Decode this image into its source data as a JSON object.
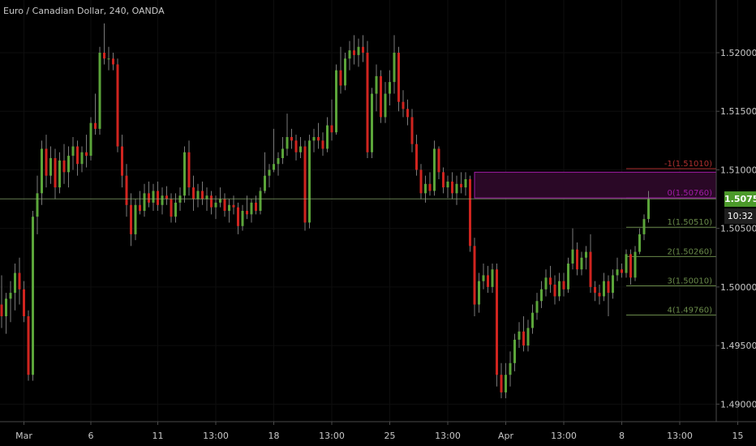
{
  "chart_title": "Euro / Canadian Dollar, 240, OANDA",
  "current_price_label": "1.50752",
  "countdown_label": "10:32",
  "colors": {
    "background": "#000000",
    "up_candle": "#5ba53a",
    "down_candle": "#d0241f",
    "wick": "#7a7a7a",
    "axis_text": "#c8c8c8",
    "price_line": "#8fb174",
    "fib_green": "#6a8a4a",
    "fib_red": "#b03030",
    "zone_fill": "#2a0826",
    "zone_border": "#a21ca8",
    "price_tag": "#4c9a2a"
  },
  "chart_data": {
    "type": "candlestick",
    "symbol": "EURCAD",
    "timeframe": "240",
    "source": "OANDA",
    "title": "Euro / Canadian Dollar, 240, OANDA",
    "ylim": [
      1.4885,
      1.5245
    ],
    "y_ticks": [
      1.49,
      1.495,
      1.5,
      1.505,
      1.51,
      1.515,
      1.52
    ],
    "y_tick_labels": [
      "1.49000",
      "1.49500",
      "1.50000",
      "1.50500",
      "1.51000",
      "1.51500",
      "1.52000"
    ],
    "x_ticks": [
      {
        "label": "Mar",
        "index": 5
      },
      {
        "label": "6",
        "index": 20
      },
      {
        "label": "11",
        "index": 35
      },
      {
        "label": "13:00",
        "index": 48
      },
      {
        "label": "18",
        "index": 61
      },
      {
        "label": "13:00",
        "index": 74
      },
      {
        "label": "25",
        "index": 87
      },
      {
        "label": "13:00",
        "index": 100
      },
      {
        "label": "Apr",
        "index": 113
      },
      {
        "label": "13:00",
        "index": 126
      },
      {
        "label": "8",
        "index": 139
      },
      {
        "label": "13:00",
        "index": 152
      },
      {
        "label": "15",
        "index": 165
      }
    ],
    "current_price": 1.50752,
    "current_price_label": "1.50752",
    "countdown": "10:32",
    "fib_levels": [
      {
        "label": "-1(1.51010)",
        "value": 1.5101,
        "color": "red"
      },
      {
        "label": "0(1.50760)",
        "value": 1.5076,
        "color": "magenta"
      },
      {
        "label": "1(1.50510)",
        "value": 1.5051,
        "color": "green"
      },
      {
        "label": "2(1.50260)",
        "value": 1.5026,
        "color": "green"
      },
      {
        "label": "3(1.50010)",
        "value": 1.5001,
        "color": "green"
      },
      {
        "label": "4(1.49760)",
        "value": 1.4976,
        "color": "green"
      }
    ],
    "zone": {
      "from_index": 106,
      "top": 1.5098,
      "bottom": 1.5076
    },
    "fib_from_index": 140,
    "candles": [
      [
        1.4985,
        1.501,
        1.4965,
        1.4975
      ],
      [
        1.4975,
        1.4995,
        1.496,
        1.499
      ],
      [
        1.499,
        1.5005,
        1.497,
        1.4995
      ],
      [
        1.4995,
        1.502,
        1.498,
        1.5012
      ],
      [
        1.5012,
        1.5025,
        1.4985,
        1.4998
      ],
      [
        1.4998,
        1.5005,
        1.497,
        1.4975
      ],
      [
        1.4975,
        1.498,
        1.492,
        1.4925
      ],
      [
        1.4925,
        1.5065,
        1.492,
        1.506
      ],
      [
        1.506,
        1.5095,
        1.5045,
        1.508
      ],
      [
        1.508,
        1.5125,
        1.507,
        1.5118
      ],
      [
        1.5118,
        1.513,
        1.5085,
        1.5095
      ],
      [
        1.5095,
        1.512,
        1.5088,
        1.511
      ],
      [
        1.511,
        1.5118,
        1.5075,
        1.5085
      ],
      [
        1.5085,
        1.5115,
        1.508,
        1.5108
      ],
      [
        1.5108,
        1.5122,
        1.5088,
        1.5098
      ],
      [
        1.5098,
        1.512,
        1.5085,
        1.5112
      ],
      [
        1.5112,
        1.5128,
        1.51,
        1.512
      ],
      [
        1.512,
        1.5125,
        1.5095,
        1.5105
      ],
      [
        1.5105,
        1.512,
        1.5098,
        1.5115
      ],
      [
        1.5115,
        1.513,
        1.5102,
        1.5112
      ],
      [
        1.5112,
        1.5145,
        1.5108,
        1.514
      ],
      [
        1.514,
        1.5165,
        1.513,
        1.5135
      ],
      [
        1.5135,
        1.5205,
        1.513,
        1.52
      ],
      [
        1.52,
        1.5225,
        1.519,
        1.5195
      ],
      [
        1.5195,
        1.5205,
        1.5185,
        1.5195
      ],
      [
        1.5195,
        1.52,
        1.5185,
        1.519
      ],
      [
        1.519,
        1.5195,
        1.5115,
        1.512
      ],
      [
        1.512,
        1.513,
        1.5085,
        1.5095
      ],
      [
        1.5095,
        1.5105,
        1.506,
        1.507
      ],
      [
        1.507,
        1.508,
        1.5035,
        1.5045
      ],
      [
        1.5045,
        1.5075,
        1.504,
        1.507
      ],
      [
        1.507,
        1.5082,
        1.5062,
        1.5065
      ],
      [
        1.5065,
        1.5088,
        1.506,
        1.508
      ],
      [
        1.508,
        1.509,
        1.5068,
        1.5072
      ],
      [
        1.5072,
        1.5088,
        1.5065,
        1.5082
      ],
      [
        1.5082,
        1.509,
        1.5065,
        1.507
      ],
      [
        1.507,
        1.5085,
        1.5062,
        1.5078
      ],
      [
        1.5078,
        1.5086,
        1.507,
        1.5075
      ],
      [
        1.5075,
        1.508,
        1.5055,
        1.506
      ],
      [
        1.506,
        1.508,
        1.5055,
        1.5072
      ],
      [
        1.5072,
        1.5085,
        1.5065,
        1.5078
      ],
      [
        1.5078,
        1.512,
        1.5072,
        1.5115
      ],
      [
        1.5115,
        1.5125,
        1.5078,
        1.5085
      ],
      [
        1.5085,
        1.5095,
        1.5065,
        1.5075
      ],
      [
        1.5075,
        1.5088,
        1.5068,
        1.5082
      ],
      [
        1.5082,
        1.509,
        1.507,
        1.5075
      ],
      [
        1.5075,
        1.5085,
        1.5065,
        1.5078
      ],
      [
        1.5078,
        1.5082,
        1.5062,
        1.5068
      ],
      [
        1.5068,
        1.5078,
        1.5058,
        1.5072
      ],
      [
        1.5072,
        1.5085,
        1.5068,
        1.5075
      ],
      [
        1.5075,
        1.508,
        1.506,
        1.5065
      ],
      [
        1.5065,
        1.5075,
        1.5055,
        1.507
      ],
      [
        1.507,
        1.5078,
        1.5062,
        1.5068
      ],
      [
        1.5068,
        1.5072,
        1.5045,
        1.5052
      ],
      [
        1.5052,
        1.507,
        1.5048,
        1.5065
      ],
      [
        1.5065,
        1.5078,
        1.5058,
        1.5062
      ],
      [
        1.5062,
        1.5075,
        1.5055,
        1.5072
      ],
      [
        1.5072,
        1.5078,
        1.5062,
        1.5065
      ],
      [
        1.5065,
        1.5085,
        1.5062,
        1.5082
      ],
      [
        1.5082,
        1.5115,
        1.508,
        1.5095
      ],
      [
        1.5095,
        1.5105,
        1.5085,
        1.51
      ],
      [
        1.51,
        1.5135,
        1.5098,
        1.5105
      ],
      [
        1.5105,
        1.5115,
        1.5095,
        1.511
      ],
      [
        1.511,
        1.5128,
        1.5105,
        1.5118
      ],
      [
        1.5118,
        1.5148,
        1.5112,
        1.5128
      ],
      [
        1.5128,
        1.5135,
        1.5118,
        1.5125
      ],
      [
        1.5125,
        1.513,
        1.5108,
        1.5115
      ],
      [
        1.5115,
        1.5128,
        1.511,
        1.512
      ],
      [
        1.512,
        1.5125,
        1.5048,
        1.5055
      ],
      [
        1.5055,
        1.513,
        1.505,
        1.5125
      ],
      [
        1.5125,
        1.5135,
        1.5115,
        1.5128
      ],
      [
        1.5128,
        1.514,
        1.5118,
        1.5125
      ],
      [
        1.5125,
        1.5132,
        1.5112,
        1.5118
      ],
      [
        1.5118,
        1.5145,
        1.5115,
        1.5138
      ],
      [
        1.5138,
        1.516,
        1.5125,
        1.5132
      ],
      [
        1.5132,
        1.519,
        1.513,
        1.5185
      ],
      [
        1.5185,
        1.5205,
        1.5165,
        1.5172
      ],
      [
        1.5172,
        1.52,
        1.5168,
        1.5195
      ],
      [
        1.5195,
        1.521,
        1.5185,
        1.5202
      ],
      [
        1.5202,
        1.5215,
        1.519,
        1.5198
      ],
      [
        1.5198,
        1.5212,
        1.5188,
        1.5205
      ],
      [
        1.5205,
        1.5215,
        1.5192,
        1.52
      ],
      [
        1.52,
        1.521,
        1.511,
        1.5115
      ],
      [
        1.5115,
        1.517,
        1.511,
        1.5165
      ],
      [
        1.5165,
        1.519,
        1.515,
        1.518
      ],
      [
        1.518,
        1.5185,
        1.514,
        1.5145
      ],
      [
        1.5145,
        1.5175,
        1.514,
        1.5165
      ],
      [
        1.5165,
        1.5185,
        1.5155,
        1.5175
      ],
      [
        1.5175,
        1.5215,
        1.5165,
        1.52
      ],
      [
        1.52,
        1.5205,
        1.515,
        1.5158
      ],
      [
        1.5158,
        1.5168,
        1.5145,
        1.5152
      ],
      [
        1.5152,
        1.516,
        1.5138,
        1.5145
      ],
      [
        1.5145,
        1.5152,
        1.5115,
        1.5122
      ],
      [
        1.5122,
        1.513,
        1.5095,
        1.51
      ],
      [
        1.51,
        1.5105,
        1.5075,
        1.508
      ],
      [
        1.508,
        1.5095,
        1.5072,
        1.5088
      ],
      [
        1.5088,
        1.5098,
        1.5078,
        1.5082
      ],
      [
        1.5082,
        1.5125,
        1.5078,
        1.5118
      ],
      [
        1.5118,
        1.512,
        1.5092,
        1.5098
      ],
      [
        1.5098,
        1.5102,
        1.508,
        1.5085
      ],
      [
        1.5085,
        1.5095,
        1.5076,
        1.509
      ],
      [
        1.509,
        1.5098,
        1.5075,
        1.508
      ],
      [
        1.508,
        1.5095,
        1.507,
        1.5088
      ],
      [
        1.5088,
        1.5098,
        1.508,
        1.5085
      ],
      [
        1.5085,
        1.5098,
        1.5078,
        1.5092
      ],
      [
        1.5092,
        1.5095,
        1.503,
        1.5035
      ],
      [
        1.5035,
        1.5042,
        1.4975,
        1.4985
      ],
      [
        1.4985,
        1.5012,
        1.4978,
        1.5005
      ],
      [
        1.5005,
        1.502,
        1.4998,
        1.501
      ],
      [
        1.501,
        1.5018,
        1.4995,
        1.5
      ],
      [
        1.5,
        1.502,
        1.4995,
        1.5015
      ],
      [
        1.5015,
        1.502,
        1.4915,
        1.4925
      ],
      [
        1.4925,
        1.4935,
        1.4905,
        1.491
      ],
      [
        1.491,
        1.4935,
        1.4905,
        1.4925
      ],
      [
        1.4925,
        1.4945,
        1.4915,
        1.4935
      ],
      [
        1.4935,
        1.496,
        1.4928,
        1.4955
      ],
      [
        1.4955,
        1.497,
        1.4948,
        1.4962
      ],
      [
        1.4962,
        1.4975,
        1.4945,
        1.495
      ],
      [
        1.495,
        1.4972,
        1.4945,
        1.4965
      ],
      [
        1.4965,
        1.4985,
        1.496,
        1.4978
      ],
      [
        1.4978,
        1.4995,
        1.4972,
        1.4988
      ],
      [
        1.4988,
        1.5005,
        1.4982,
        1.4998
      ],
      [
        1.4998,
        1.5015,
        1.4992,
        1.5008
      ],
      [
        1.5008,
        1.5018,
        1.4995,
        1.5002
      ],
      [
        1.5002,
        1.501,
        1.4985,
        1.4992
      ],
      [
        1.4992,
        1.5012,
        1.4988,
        1.5005
      ],
      [
        1.5005,
        1.5012,
        1.4992,
        1.4998
      ],
      [
        1.4998,
        1.5025,
        1.4995,
        1.502
      ],
      [
        1.502,
        1.505,
        1.5015,
        1.5032
      ],
      [
        1.5032,
        1.5038,
        1.501,
        1.5015
      ],
      [
        1.5015,
        1.503,
        1.501,
        1.5025
      ],
      [
        1.5025,
        1.5035,
        1.5015,
        1.503
      ],
      [
        1.503,
        1.5045,
        1.4995,
        1.5
      ],
      [
        1.5,
        1.5005,
        1.4988,
        1.4995
      ],
      [
        1.4995,
        1.5002,
        1.4985,
        1.4992
      ],
      [
        1.4992,
        1.5012,
        1.4988,
        1.5005
      ],
      [
        1.5005,
        1.501,
        1.4975,
        1.4995
      ],
      [
        1.4995,
        1.5015,
        1.499,
        1.501
      ],
      [
        1.501,
        1.5025,
        1.5005,
        1.5015
      ],
      [
        1.5015,
        1.502,
        1.5008,
        1.5012
      ],
      [
        1.5012,
        1.5032,
        1.5008,
        1.5028
      ],
      [
        1.5028,
        1.5032,
        1.5002,
        1.5008
      ],
      [
        1.5008,
        1.5035,
        1.5005,
        1.503
      ],
      [
        1.503,
        1.505,
        1.5028,
        1.5045
      ],
      [
        1.5045,
        1.5062,
        1.504,
        1.5058
      ],
      [
        1.5058,
        1.5082,
        1.5055,
        1.5075
      ]
    ]
  }
}
